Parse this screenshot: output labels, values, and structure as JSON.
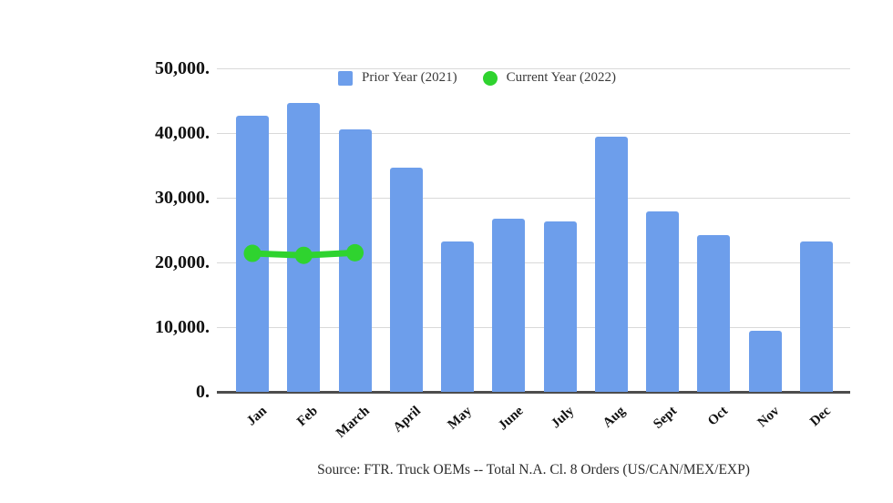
{
  "page": {
    "background": "#ffffff"
  },
  "chart_data": {
    "type": "bar",
    "title": "",
    "xlabel": "",
    "ylabel": "",
    "categories": [
      "Jan",
      "Feb",
      "March",
      "April",
      "May",
      "June",
      "July",
      "Aug",
      "Sept",
      "Oct",
      "Nov",
      "Dec"
    ],
    "series": [
      {
        "name": "Prior Year (2021)",
        "type": "bar",
        "color": "#6d9eeb",
        "values": [
          42700,
          44600,
          40600,
          34700,
          23300,
          26700,
          26300,
          39500,
          27900,
          24200,
          9500,
          23200
        ]
      },
      {
        "name": "Current Year (2022)",
        "type": "line",
        "color": "#2fd32f",
        "values": [
          21400,
          21100,
          21500,
          null,
          null,
          null,
          null,
          null,
          null,
          null,
          null,
          null
        ]
      }
    ],
    "ylim": [
      0,
      50000
    ],
    "yticks": [
      {
        "value": 0,
        "label": "0."
      },
      {
        "value": 10000,
        "label": "10,000."
      },
      {
        "value": 20000,
        "label": "20,000."
      },
      {
        "value": 30000,
        "label": "30,000."
      },
      {
        "value": 40000,
        "label": "40,000."
      },
      {
        "value": 50000,
        "label": "50,000."
      }
    ],
    "grid": true,
    "legend_position": "top",
    "source_note": "Source: FTR. Truck OEMs -- Total N.A. Cl. 8 Orders (US/CAN/MEX/EXP)"
  },
  "legend": {
    "items": [
      {
        "label": "Prior Year (2021)",
        "swatch": "square",
        "color": "#6d9eeb"
      },
      {
        "label": "Current Year (2022)",
        "swatch": "circle",
        "color": "#2fd32f"
      }
    ]
  },
  "footer": {
    "source": "Source: FTR. Truck OEMs -- Total N.A. Cl. 8 Orders (US/CAN/MEX/EXP)"
  }
}
